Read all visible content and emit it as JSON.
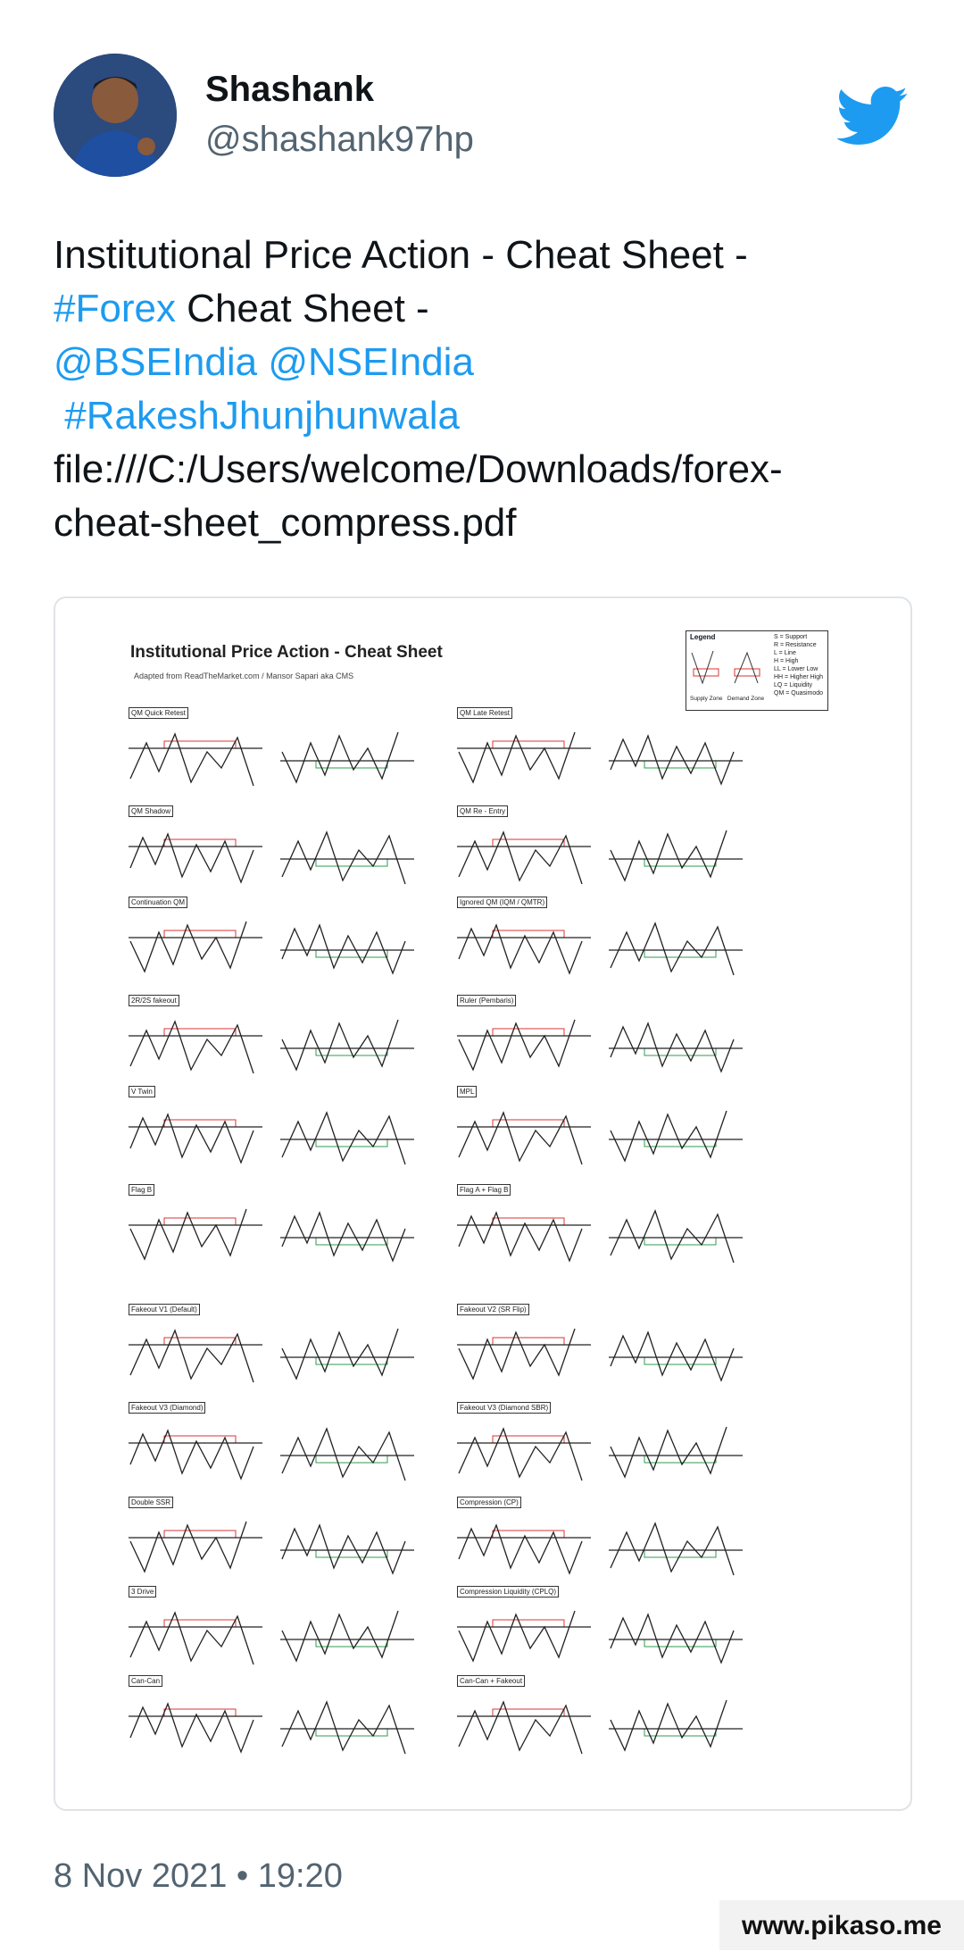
{
  "tweet": {
    "author": {
      "name": "Shashank",
      "handle": "@shashank97hp"
    },
    "icons": {
      "brand": "twitter-bird-icon",
      "brand_color": "#1d9bf0"
    },
    "text": {
      "line1": "Institutional  Price Action - Cheat Sheet  -",
      "hashtag_forex": "#Forex",
      "line2_rest": " Cheat Sheet -",
      "mention_bse": "@BSEIndia",
      "mention_nse": "@NSEIndia",
      "hashtag_rakesh": "#RakeshJhunjhunwala",
      "url_line1": "file:///C:/Users/welcome/Downloads/forex-",
      "url_line2": "cheat-sheet_compress.pdf"
    },
    "timestamp": "8 Nov 2021 • 19:20",
    "watermark": "www.pikaso.me"
  },
  "sheet": {
    "title": "Institutional Price Action - Cheat Sheet",
    "subtitle": "Adapted from ReadTheMarket.com / Mansor Sapari aka CMS",
    "legend": {
      "title": "Legend",
      "items": [
        "S = Support",
        "R = Resistance",
        "L = Line",
        "H = High",
        "LL = Lower Low",
        "HH = Higher High",
        "LQ = Liquidity",
        "QM = Quasimodo"
      ],
      "supply_zone": "Supply Zone",
      "demand_zone": "Demand Zone"
    },
    "sections": [
      "QM Quick Retest",
      "QM Late Retest",
      "QM Shadow",
      "QM Re - Entry",
      "Continuation QM",
      "Ignored QM (IQM / QMTR)",
      "2R/2S fakeout",
      "Ruler (Pembaris)",
      "V Twin",
      "MPL",
      "Flag B",
      "Flag A + Flag B",
      "Fakeout V1 (Default)",
      "Fakeout V2 (SR Flip)",
      "Fakeout V3 (Diamond)",
      "Fakeout V3 (Diamond SBR)",
      "Double SSR",
      "Compression (CP)",
      "3 Drive",
      "Compression Liquidity (CPLQ)",
      "Can-Can",
      "Can-Can + Fakeout"
    ]
  }
}
